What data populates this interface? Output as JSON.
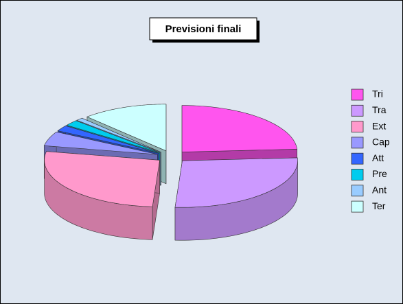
{
  "chart_data": {
    "type": "pie",
    "title": "Previsioni finali",
    "categories": [
      "Tri",
      "Tra",
      "Ext",
      "Cap",
      "Att",
      "Pre",
      "Ant",
      "Ter"
    ],
    "values": [
      24,
      27,
      27,
      5,
      2,
      2,
      1,
      12
    ],
    "colors": [
      "#ff55ee",
      "#cc99ff",
      "#ff99cc",
      "#9999ff",
      "#3366ff",
      "#00ccee",
      "#99ccff",
      "#ccffff"
    ],
    "legend": "right"
  }
}
